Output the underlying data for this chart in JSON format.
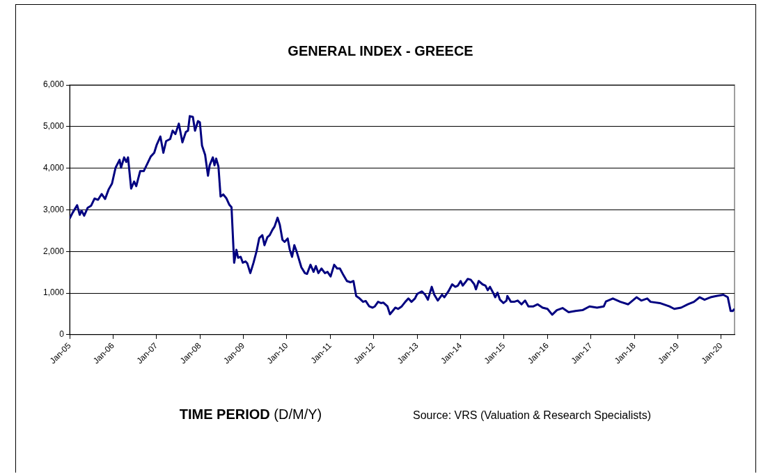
{
  "chart_data": {
    "type": "line",
    "title": "GENERAL INDEX - GREECE",
    "xlabel": "TIME PERIOD (D/M/Y)",
    "annotations": [
      "Source: VRS (Valuation & Research Specialists)"
    ],
    "xlim": [
      "2005-01-01",
      "2020-04-22"
    ],
    "xticks": [
      {
        "value": "2005-01-01",
        "label": "Jan-05"
      },
      {
        "value": "2006-01-01",
        "label": "Jan-06"
      },
      {
        "value": "2007-01-01",
        "label": "Jan-07"
      },
      {
        "value": "2008-01-01",
        "label": "Jan-08"
      },
      {
        "value": "2009-01-01",
        "label": "Jan-09"
      },
      {
        "value": "2010-01-01",
        "label": "Jan-10"
      },
      {
        "value": "2011-01-01",
        "label": "Jan-11"
      },
      {
        "value": "2012-01-01",
        "label": "Jan-12"
      },
      {
        "value": "2013-01-01",
        "label": "Jan-13"
      },
      {
        "value": "2014-01-01",
        "label": "Jan-14"
      },
      {
        "value": "2015-01-01",
        "label": "Jan-15"
      },
      {
        "value": "2016-01-01",
        "label": "Jan-16"
      },
      {
        "value": "2017-01-01",
        "label": "Jan-17"
      },
      {
        "value": "2018-01-01",
        "label": "Jan-18"
      },
      {
        "value": "2019-01-01",
        "label": "Jan-19"
      },
      {
        "value": "2020-01-01",
        "label": "Jan-20"
      }
    ],
    "ylim": [
      0,
      6000
    ],
    "yticks": [
      0,
      {
        "value": 1000,
        "label": "1,000"
      },
      {
        "value": 2000,
        "label": "2,000"
      },
      {
        "value": 3000,
        "label": "3,000"
      },
      {
        "value": 4000,
        "label": "4,000"
      },
      {
        "value": 5000,
        "label": "5,000"
      },
      {
        "value": 6000,
        "label": "6,000"
      }
    ],
    "grid": "y",
    "legend": false,
    "marker": "none",
    "line_style": "solid",
    "x": [
      "2005-01-01",
      "2005-01-26",
      "2005-03-05",
      "2005-03-27",
      "2005-04-11",
      "2005-05-03",
      "2005-06-02",
      "2005-07-01",
      "2005-07-29",
      "2005-08-28",
      "2005-09-27",
      "2005-10-26",
      "2005-11-25",
      "2005-12-23",
      "2006-01-22",
      "2006-02-25",
      "2006-03-09",
      "2006-04-04",
      "2006-04-22",
      "2006-05-07",
      "2006-06-02",
      "2006-06-27",
      "2006-07-15",
      "2006-08-17",
      "2006-09-16",
      "2006-10-15",
      "2006-11-14",
      "2006-12-13",
      "2007-01-04",
      "2007-02-03",
      "2007-02-28",
      "2007-03-23",
      "2007-04-26",
      "2007-05-17",
      "2007-06-09",
      "2007-07-08",
      "2007-08-07",
      "2007-09-05",
      "2007-09-23",
      "2007-10-08",
      "2007-11-03",
      "2007-11-21",
      "2007-12-16",
      "2008-01-01",
      "2008-01-19",
      "2008-02-14",
      "2008-03-09",
      "2008-03-23",
      "2008-04-19",
      "2008-05-03",
      "2008-05-17",
      "2008-06-05",
      "2008-06-23",
      "2008-07-15",
      "2008-08-10",
      "2008-09-05",
      "2008-09-23",
      "2008-10-15",
      "2008-11-03",
      "2008-11-17",
      "2008-12-09",
      "2008-12-27",
      "2009-01-19",
      "2009-02-03",
      "2009-02-28",
      "2009-03-27",
      "2009-04-22",
      "2009-05-14",
      "2009-06-09",
      "2009-06-27",
      "2009-07-21",
      "2009-08-10",
      "2009-09-02",
      "2009-09-20",
      "2009-10-15",
      "2009-11-03",
      "2009-11-25",
      "2009-12-13",
      "2010-01-08",
      "2010-01-26",
      "2010-02-14",
      "2010-03-05",
      "2010-03-23",
      "2010-05-03",
      "2010-06-02",
      "2010-06-20",
      "2010-07-19",
      "2010-08-14",
      "2010-09-02",
      "2010-09-23",
      "2010-10-19",
      "2010-11-17",
      "2010-12-09",
      "2011-01-04",
      "2011-02-03",
      "2011-02-28",
      "2011-03-23",
      "2011-04-22",
      "2011-05-21",
      "2011-06-20",
      "2011-07-15",
      "2011-08-07",
      "2011-09-05",
      "2011-10-04",
      "2011-10-26",
      "2011-11-25",
      "2011-12-23",
      "2012-01-11",
      "2012-02-07",
      "2012-03-02",
      "2012-03-23",
      "2012-04-26",
      "2012-05-17",
      "2012-06-09",
      "2012-07-01",
      "2012-07-25",
      "2012-08-24",
      "2012-09-23",
      "2012-10-19",
      "2012-11-14",
      "2012-12-13",
      "2013-01-01",
      "2013-02-10",
      "2013-03-09",
      "2013-04-01",
      "2013-05-03",
      "2013-05-25",
      "2013-06-23",
      "2013-07-29",
      "2013-08-17",
      "2013-09-20",
      "2013-10-22",
      "2013-11-17",
      "2013-12-09",
      "2014-01-01",
      "2014-01-19",
      "2014-02-10",
      "2014-03-02",
      "2014-03-27",
      "2014-04-26",
      "2014-05-10",
      "2014-06-02",
      "2014-07-04",
      "2014-07-29",
      "2014-08-17",
      "2014-09-05",
      "2014-10-01",
      "2014-10-19",
      "2014-11-07",
      "2014-11-28",
      "2014-12-27",
      "2015-01-22",
      "2015-01-29",
      "2015-02-28",
      "2015-03-27",
      "2015-04-26",
      "2015-05-28",
      "2015-06-27",
      "2015-07-25",
      "2015-09-05",
      "2015-10-11",
      "2015-11-21",
      "2016-01-01",
      "2016-02-10",
      "2016-03-20",
      "2016-05-07",
      "2016-06-27",
      "2016-08-24",
      "2016-10-22",
      "2016-12-20",
      "2017-02-21",
      "2017-04-19",
      "2017-05-07",
      "2017-07-04",
      "2017-09-05",
      "2017-11-10",
      "2018-01-19",
      "2018-02-28",
      "2018-04-19",
      "2018-05-17",
      "2018-08-03",
      "2018-10-22",
      "2018-12-02",
      "2019-01-29",
      "2019-03-27",
      "2019-05-17",
      "2019-07-04",
      "2019-08-14",
      "2019-10-04",
      "2019-11-21",
      "2020-01-19",
      "2020-02-25",
      "2020-03-20",
      "2020-04-07",
      "2020-04-22"
    ],
    "series": [
      {
        "color": "#000080",
        "values": [
          2790,
          2930,
          3110,
          2880,
          2980,
          2860,
          3050,
          3100,
          3270,
          3240,
          3380,
          3260,
          3490,
          3630,
          4010,
          4200,
          4010,
          4260,
          4150,
          4260,
          3510,
          3680,
          3570,
          3930,
          3930,
          4100,
          4280,
          4370,
          4570,
          4760,
          4370,
          4650,
          4700,
          4900,
          4820,
          5070,
          4620,
          4870,
          4900,
          5250,
          5230,
          4900,
          5130,
          5100,
          4540,
          4320,
          3820,
          4070,
          4260,
          4070,
          4230,
          4040,
          3320,
          3370,
          3280,
          3120,
          3060,
          1730,
          2040,
          1850,
          1870,
          1730,
          1760,
          1710,
          1480,
          1730,
          2010,
          2320,
          2390,
          2150,
          2340,
          2390,
          2520,
          2600,
          2810,
          2640,
          2280,
          2230,
          2310,
          2040,
          1870,
          2150,
          2010,
          1620,
          1480,
          1460,
          1680,
          1510,
          1650,
          1480,
          1590,
          1480,
          1510,
          1400,
          1680,
          1590,
          1590,
          1430,
          1290,
          1260,
          1290,
          930,
          870,
          790,
          810,
          680,
          650,
          680,
          790,
          760,
          770,
          680,
          490,
          570,
          650,
          620,
          680,
          790,
          870,
          790,
          870,
          980,
          1040,
          960,
          840,
          1150,
          960,
          820,
          960,
          900,
          1040,
          1210,
          1150,
          1180,
          1290,
          1180,
          1260,
          1340,
          1320,
          1210,
          1090,
          1290,
          1210,
          1180,
          1070,
          1150,
          1010,
          900,
          1010,
          840,
          760,
          820,
          930,
          790,
          790,
          820,
          730,
          820,
          680,
          680,
          730,
          650,
          620,
          480,
          590,
          640,
          540,
          570,
          590,
          680,
          650,
          680,
          800,
          870,
          790,
          730,
          900,
          820,
          870,
          790,
          760,
          680,
          620,
          650,
          730,
          790,
          900,
          840,
          900,
          930,
          960,
          900,
          570,
          570,
          620
        ]
      }
    ]
  }
}
